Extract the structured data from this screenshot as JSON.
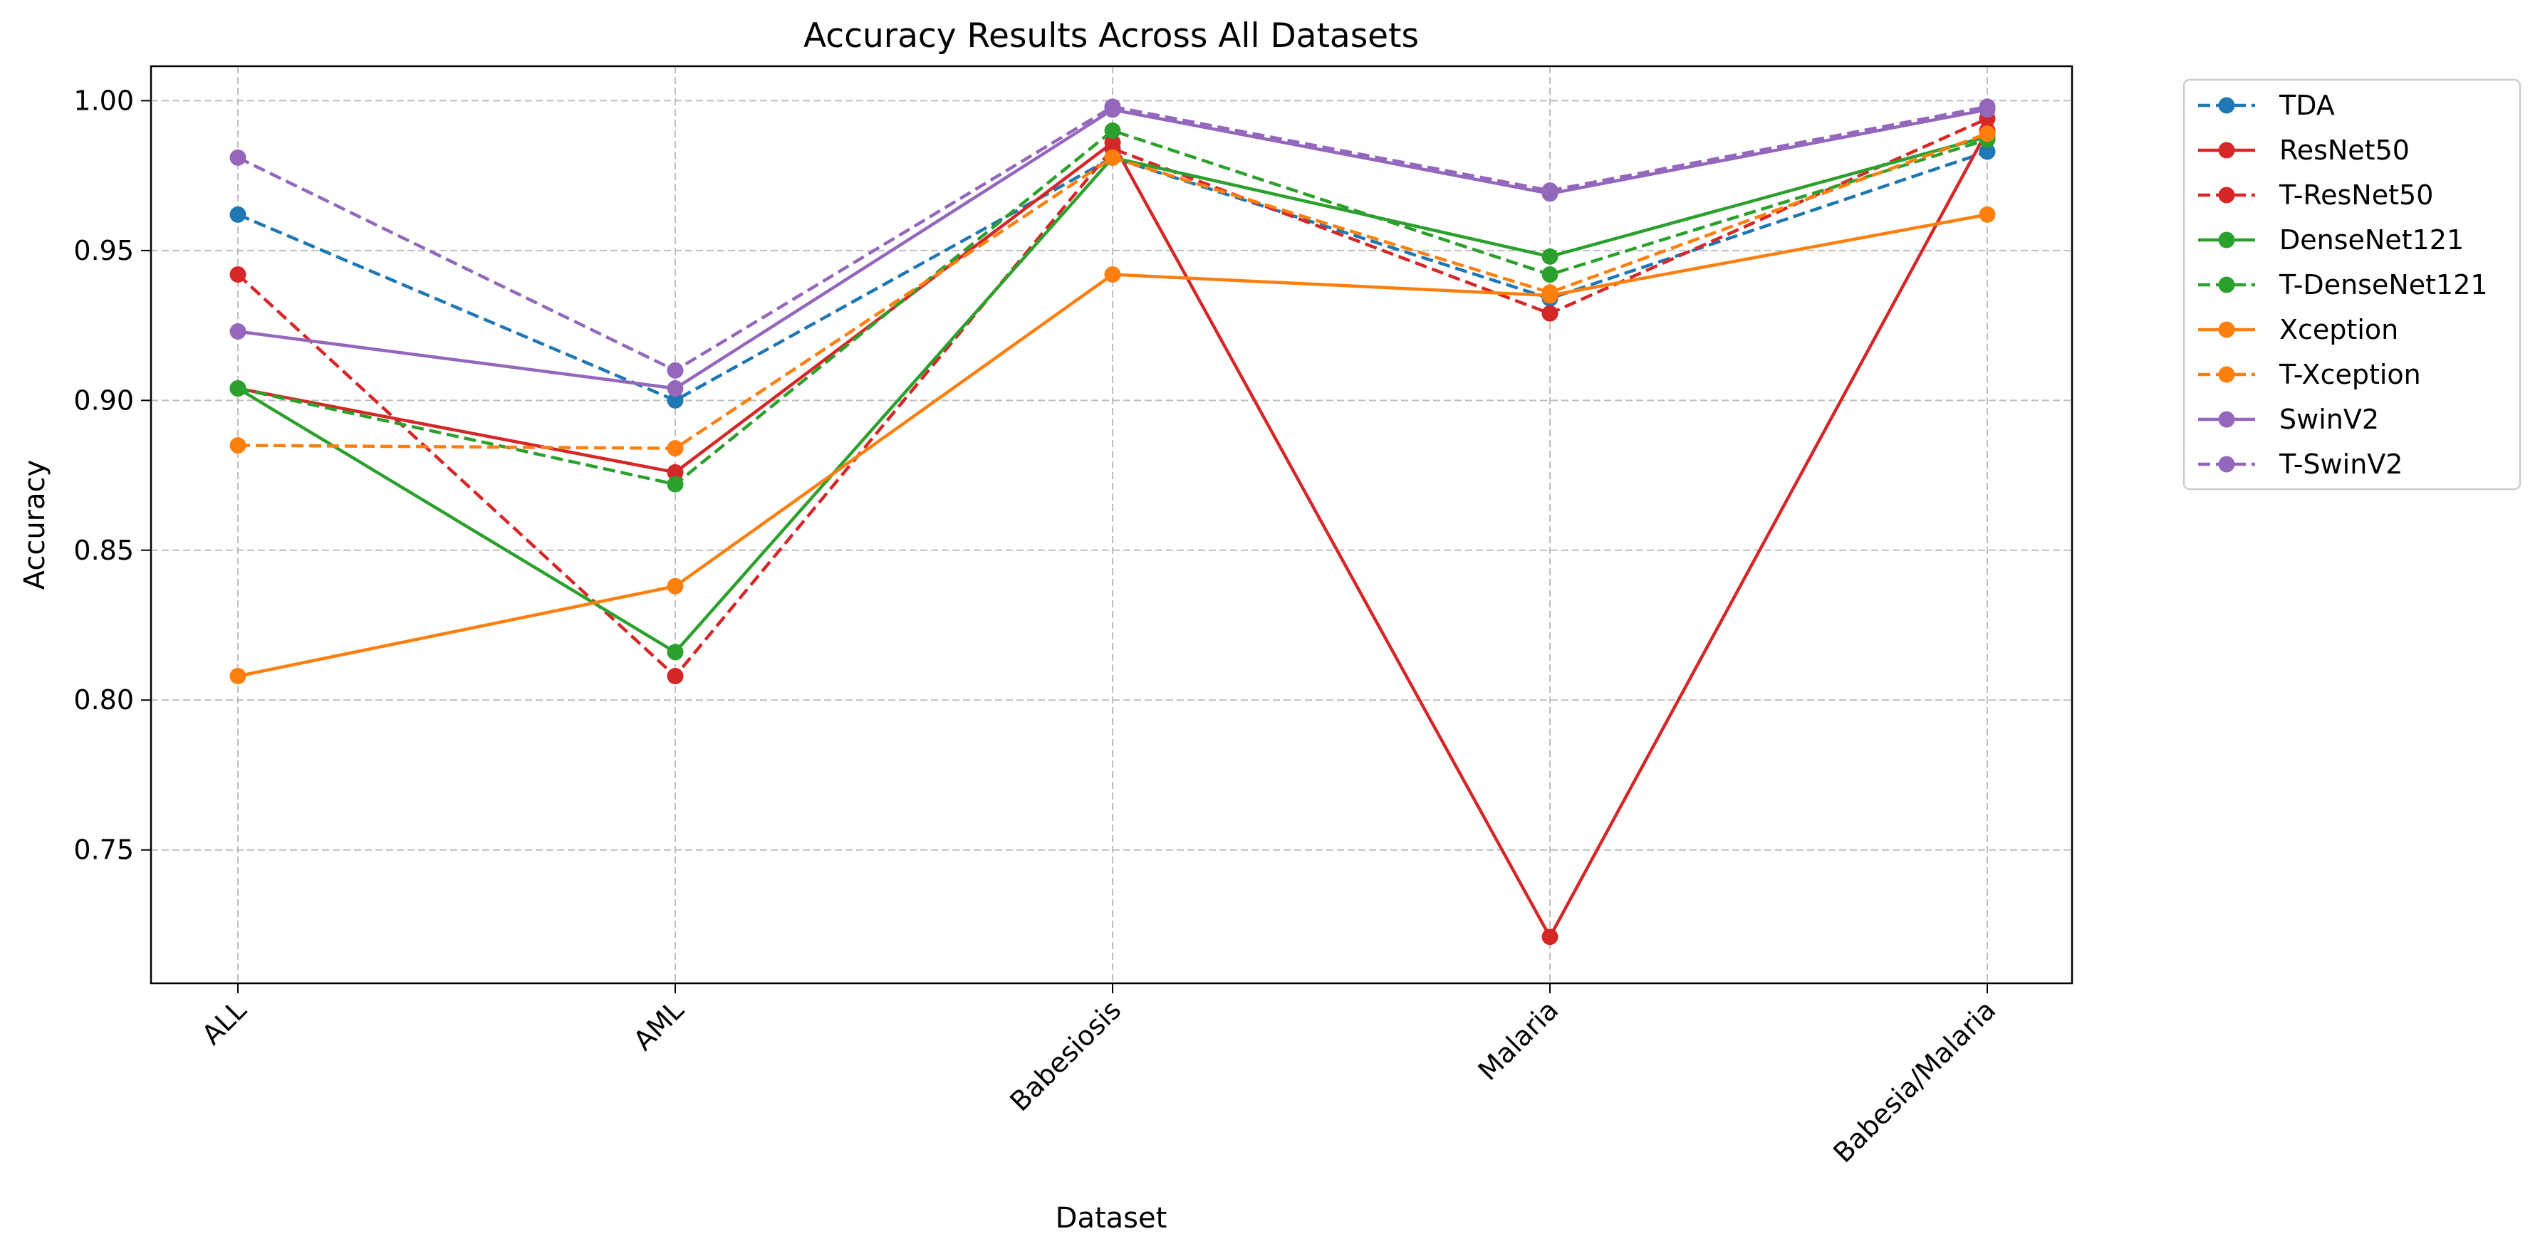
{
  "chart_data": {
    "type": "line",
    "title": "Accuracy Results Across All Datasets",
    "xlabel": "Dataset",
    "ylabel": "Accuracy",
    "categories": [
      "ALL",
      "AML",
      "Babesiosis",
      "Malaria",
      "Babesia/Malaria"
    ],
    "ylim": [
      0.7055,
      1.0115
    ],
    "yticks": [
      0.75,
      0.8,
      0.85,
      0.9,
      0.95,
      1.0
    ],
    "ytick_labels": [
      "0.75",
      "0.80",
      "0.85",
      "0.90",
      "0.95",
      "1.00"
    ],
    "grid": true,
    "legend_position": "outside-top-right",
    "series": [
      {
        "name": "TDA",
        "color": "#1f77b4",
        "style": "dashed",
        "values": [
          0.962,
          0.9,
          0.981,
          0.934,
          0.983
        ]
      },
      {
        "name": "ResNet50",
        "color": "#d62728",
        "style": "solid",
        "values": [
          0.904,
          0.876,
          0.986,
          0.721,
          0.99
        ]
      },
      {
        "name": "T-ResNet50",
        "color": "#d62728",
        "style": "dashed",
        "values": [
          0.942,
          0.808,
          0.984,
          0.929,
          0.994
        ]
      },
      {
        "name": "DenseNet121",
        "color": "#2ca02c",
        "style": "solid",
        "values": [
          0.904,
          0.816,
          0.981,
          0.948,
          0.988
        ]
      },
      {
        "name": "T-DenseNet121",
        "color": "#2ca02c",
        "style": "dashed",
        "values": [
          0.904,
          0.872,
          0.99,
          0.942,
          0.987
        ]
      },
      {
        "name": "Xception",
        "color": "#ff7f0e",
        "style": "solid",
        "values": [
          0.808,
          0.838,
          0.942,
          0.935,
          0.962
        ]
      },
      {
        "name": "T-Xception",
        "color": "#ff7f0e",
        "style": "dashed",
        "values": [
          0.885,
          0.884,
          0.981,
          0.936,
          0.989
        ]
      },
      {
        "name": "SwinV2",
        "color": "#9467bd",
        "style": "solid",
        "values": [
          0.923,
          0.904,
          0.997,
          0.969,
          0.997
        ]
      },
      {
        "name": "T-SwinV2",
        "color": "#9467bd",
        "style": "dashed",
        "values": [
          0.981,
          0.91,
          0.998,
          0.97,
          0.998
        ]
      }
    ]
  }
}
